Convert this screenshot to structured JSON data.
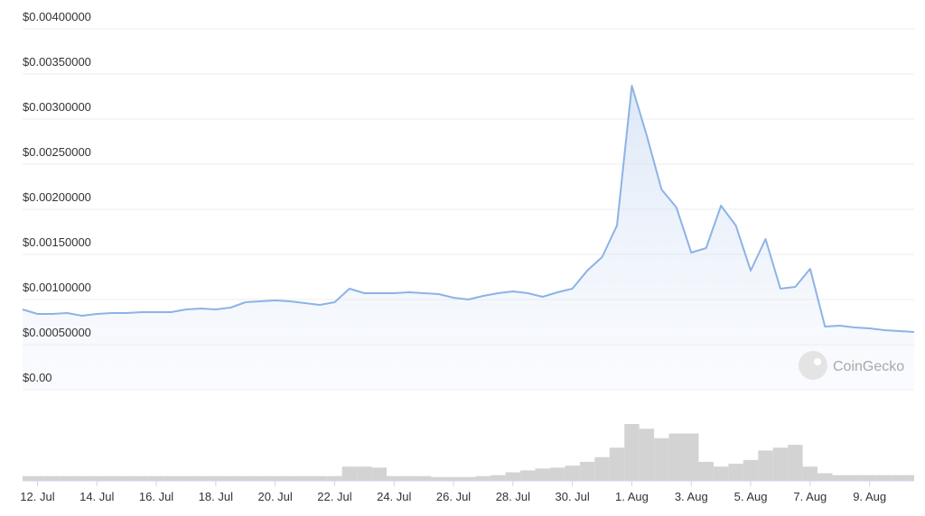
{
  "chart_data": {
    "type": "line",
    "watermark": "CoinGecko",
    "categories": [
      null,
      "12. Jul",
      null,
      null,
      null,
      "14. Jul",
      null,
      null,
      null,
      "16. Jul",
      null,
      null,
      null,
      "18. Jul",
      null,
      null,
      null,
      "20. Jul",
      null,
      null,
      null,
      "22. Jul",
      null,
      null,
      null,
      "24. Jul",
      null,
      null,
      null,
      "26. Jul",
      null,
      null,
      null,
      "28. Jul",
      null,
      null,
      null,
      "30. Jul",
      null,
      null,
      null,
      "1. Aug",
      null,
      null,
      null,
      "3. Aug",
      null,
      null,
      null,
      "5. Aug",
      null,
      null,
      null,
      "7. Aug",
      null,
      null,
      null,
      "9. Aug",
      null,
      null,
      null
    ],
    "values": [
      0.00089,
      0.00084,
      0.00084,
      0.00085,
      0.00082,
      0.00084,
      0.00085,
      0.00085,
      0.00086,
      0.00086,
      0.00086,
      0.00089,
      0.0009,
      0.00089,
      0.00091,
      0.00097,
      0.00098,
      0.00099,
      0.00098,
      0.00096,
      0.00094,
      0.00097,
      0.00112,
      0.00107,
      0.00107,
      0.00107,
      0.00108,
      0.00107,
      0.00106,
      0.00102,
      0.001,
      0.00104,
      0.00107,
      0.00109,
      0.00107,
      0.00103,
      0.00108,
      0.00112,
      0.00132,
      0.00147,
      0.00182,
      0.00337,
      0.00282,
      0.00222,
      0.00202,
      0.00152,
      0.00157,
      0.00204,
      0.00182,
      0.00132,
      0.00167,
      0.00112,
      0.00114,
      0.00134,
      0.0007,
      0.00071,
      0.00069,
      0.00068,
      0.00066,
      0.00065,
      0.00064
    ],
    "color": "#8db3e6",
    "volume": {
      "color": "#d3d3d3",
      "values": [
        5,
        5,
        5,
        5,
        5,
        5,
        5,
        5,
        5,
        5,
        5,
        5,
        5,
        5,
        5,
        5,
        5,
        5,
        5,
        5,
        5,
        5,
        15,
        15,
        14,
        5,
        5,
        5,
        4,
        4,
        4,
        5,
        6,
        9,
        11,
        13,
        14,
        16,
        20,
        25,
        35,
        60,
        55,
        45,
        50,
        50,
        20,
        15,
        18,
        22,
        32,
        35,
        38,
        15,
        8,
        6,
        6,
        6,
        6,
        6,
        6
      ]
    },
    "ylim": [
      0,
      0.004
    ],
    "yticks": [
      {
        "value": 0,
        "label": "$0.00"
      },
      {
        "value": 0.0005,
        "label": "$0.00050000"
      },
      {
        "value": 0.001,
        "label": "$0.00100000"
      },
      {
        "value": 0.0015,
        "label": "$0.00150000"
      },
      {
        "value": 0.002,
        "label": "$0.00200000"
      },
      {
        "value": 0.0025,
        "label": "$0.00250000"
      },
      {
        "value": 0.003,
        "label": "$0.00300000"
      },
      {
        "value": 0.0035,
        "label": "$0.00350000"
      },
      {
        "value": 0.004,
        "label": "$0.00400000"
      }
    ],
    "grid": true
  }
}
